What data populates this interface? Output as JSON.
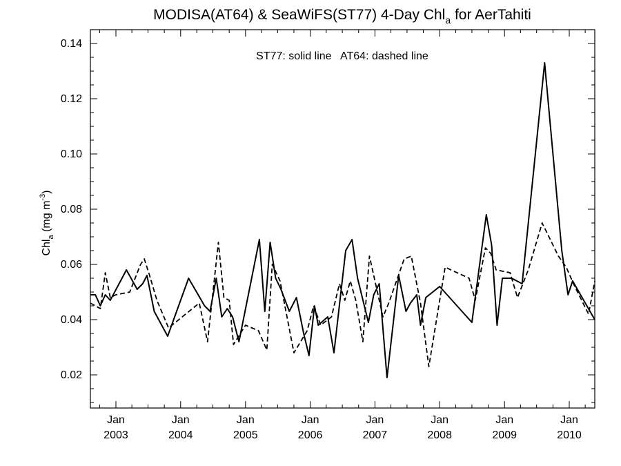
{
  "chart_data": {
    "type": "line",
    "title_parts": {
      "before": "MODISA(AT64) & SeaWiFS(ST77) 4-Day Chl",
      "sub": "a",
      "after": " for AerTahiti"
    },
    "ylabel_parts": {
      "base": "Chl",
      "sub": "a",
      "mid": " (mg m",
      "sup": "-3",
      "end": ")"
    },
    "annotation": "ST77: solid line   AT64: dashed line",
    "xlim": [
      "2002-08-10",
      "2010-05-25"
    ],
    "ylim": [
      0.008,
      0.145
    ],
    "y_ticks": [
      0.02,
      0.04,
      0.06,
      0.08,
      0.1,
      0.12,
      0.14
    ],
    "y_tick_labels": [
      "0.02",
      "0.04",
      "0.06",
      "0.08",
      "0.10",
      "0.12",
      "0.14"
    ],
    "x_ticks": [
      {
        "date": "2003-01-01",
        "month": "Jan",
        "year": "2003"
      },
      {
        "date": "2004-01-01",
        "month": "Jan",
        "year": "2004"
      },
      {
        "date": "2005-01-01",
        "month": "Jan",
        "year": "2005"
      },
      {
        "date": "2006-01-01",
        "month": "Jan",
        "year": "2006"
      },
      {
        "date": "2007-01-01",
        "month": "Jan",
        "year": "2007"
      },
      {
        "date": "2008-01-01",
        "month": "Jan",
        "year": "2008"
      },
      {
        "date": "2009-01-01",
        "month": "Jan",
        "year": "2009"
      },
      {
        "date": "2010-01-01",
        "month": "Jan",
        "year": "2010"
      }
    ],
    "series": [
      {
        "line_style": "solid",
        "color": "#000000",
        "points": [
          [
            "2002-08-10",
            0.049
          ],
          [
            "2002-09-07",
            0.049
          ],
          [
            "2002-10-05",
            0.045
          ],
          [
            "2002-11-02",
            0.049
          ],
          [
            "2002-11-30",
            0.047
          ],
          [
            "2003-03-01",
            0.058
          ],
          [
            "2003-05-01",
            0.051
          ],
          [
            "2003-06-01",
            0.053
          ],
          [
            "2003-06-25",
            0.056
          ],
          [
            "2003-08-05",
            0.043
          ],
          [
            "2003-10-20",
            0.034
          ],
          [
            "2004-02-15",
            0.055
          ],
          [
            "2004-05-15",
            0.045
          ],
          [
            "2004-06-15",
            0.043
          ],
          [
            "2004-07-20",
            0.055
          ],
          [
            "2004-08-20",
            0.041
          ],
          [
            "2004-09-20",
            0.044
          ],
          [
            "2004-10-20",
            0.041
          ],
          [
            "2004-11-25",
            0.032
          ],
          [
            "2005-03-20",
            0.069
          ],
          [
            "2005-04-20",
            0.043
          ],
          [
            "2005-05-20",
            0.068
          ],
          [
            "2005-06-20",
            0.055
          ],
          [
            "2005-07-20",
            0.051
          ],
          [
            "2005-09-05",
            0.043
          ],
          [
            "2005-10-15",
            0.048
          ],
          [
            "2005-11-25",
            0.035
          ],
          [
            "2005-12-25",
            0.027
          ],
          [
            "2006-01-25",
            0.045
          ],
          [
            "2006-02-15",
            0.038
          ],
          [
            "2006-04-10",
            0.041
          ],
          [
            "2006-05-15",
            0.028
          ],
          [
            "2006-07-20",
            0.065
          ],
          [
            "2006-08-25",
            0.069
          ],
          [
            "2006-09-25",
            0.055
          ],
          [
            "2006-11-25",
            0.039
          ],
          [
            "2006-12-25",
            0.049
          ],
          [
            "2007-01-25",
            0.053
          ],
          [
            "2007-03-10",
            0.019
          ],
          [
            "2007-05-15",
            0.056
          ],
          [
            "2007-06-25",
            0.043
          ],
          [
            "2007-07-20",
            0.046
          ],
          [
            "2007-08-25",
            0.049
          ],
          [
            "2007-09-15",
            0.038
          ],
          [
            "2007-10-15",
            0.048
          ],
          [
            "2008-01-01",
            0.052
          ],
          [
            "2008-07-01",
            0.039
          ],
          [
            "2008-09-20",
            0.078
          ],
          [
            "2008-10-20",
            0.067
          ],
          [
            "2008-11-20",
            0.038
          ],
          [
            "2008-12-20",
            0.055
          ],
          [
            "2009-02-10",
            0.055
          ],
          [
            "2009-04-10",
            0.053
          ],
          [
            "2009-08-15",
            0.133
          ],
          [
            "2009-11-20",
            0.065
          ],
          [
            "2009-12-25",
            0.049
          ],
          [
            "2010-01-20",
            0.054
          ],
          [
            "2010-05-25",
            0.04
          ]
        ]
      },
      {
        "line_style": "dashed",
        "color": "#000000",
        "points": [
          [
            "2002-08-10",
            0.046
          ],
          [
            "2002-09-07",
            0.045
          ],
          [
            "2002-10-05",
            0.044
          ],
          [
            "2002-11-02",
            0.057
          ],
          [
            "2002-11-30",
            0.048
          ],
          [
            "2003-01-01",
            0.049
          ],
          [
            "2003-03-20",
            0.05
          ],
          [
            "2003-05-20",
            0.06
          ],
          [
            "2003-06-10",
            0.062
          ],
          [
            "2003-07-10",
            0.056
          ],
          [
            "2003-08-20",
            0.047
          ],
          [
            "2003-10-25",
            0.037
          ],
          [
            "2004-04-15",
            0.046
          ],
          [
            "2004-06-01",
            0.032
          ],
          [
            "2004-08-01",
            0.068
          ],
          [
            "2004-09-01",
            0.048
          ],
          [
            "2004-10-01",
            0.047
          ],
          [
            "2004-10-25",
            0.031
          ],
          [
            "2005-01-01",
            0.038
          ],
          [
            "2005-03-15",
            0.036
          ],
          [
            "2005-05-01",
            0.029
          ],
          [
            "2005-06-01",
            0.06
          ],
          [
            "2005-07-15",
            0.054
          ],
          [
            "2005-10-01",
            0.028
          ],
          [
            "2005-12-15",
            0.036
          ],
          [
            "2006-01-20",
            0.045
          ],
          [
            "2006-03-01",
            0.038
          ],
          [
            "2006-05-01",
            0.041
          ],
          [
            "2006-06-15",
            0.053
          ],
          [
            "2006-07-15",
            0.047
          ],
          [
            "2006-08-15",
            0.054
          ],
          [
            "2006-09-15",
            0.047
          ],
          [
            "2006-10-25",
            0.032
          ],
          [
            "2006-12-01",
            0.063
          ],
          [
            "2007-02-15",
            0.041
          ],
          [
            "2007-03-20",
            0.046
          ],
          [
            "2007-06-15",
            0.062
          ],
          [
            "2007-07-25",
            0.063
          ],
          [
            "2007-09-15",
            0.046
          ],
          [
            "2007-11-01",
            0.023
          ],
          [
            "2008-02-01",
            0.059
          ],
          [
            "2008-06-15",
            0.055
          ],
          [
            "2008-07-20",
            0.047
          ],
          [
            "2008-09-15",
            0.066
          ],
          [
            "2008-10-15",
            0.064
          ],
          [
            "2008-11-15",
            0.058
          ],
          [
            "2009-02-01",
            0.057
          ],
          [
            "2009-03-15",
            0.048
          ],
          [
            "2009-05-15",
            0.058
          ],
          [
            "2009-08-01",
            0.075
          ],
          [
            "2009-11-01",
            0.063
          ],
          [
            "2009-12-15",
            0.059
          ],
          [
            "2010-02-01",
            0.052
          ],
          [
            "2010-04-20",
            0.042
          ],
          [
            "2010-05-25",
            0.054
          ]
        ]
      }
    ]
  }
}
